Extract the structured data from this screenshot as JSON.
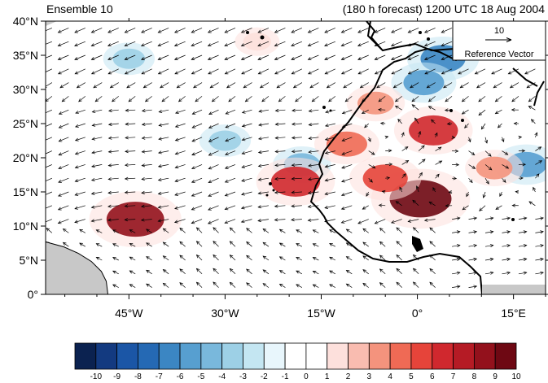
{
  "header": {
    "left_title": "Ensemble 10",
    "right_title": "(180 h forecast) 1200 UTC 18 Aug 2004"
  },
  "reference": {
    "magnitude": "10",
    "label": "Reference Vector"
  },
  "chart_data": {
    "type": "heatmap",
    "title": "",
    "xlabel": "",
    "ylabel": "",
    "xlim": [
      -58,
      20
    ],
    "ylim": [
      0,
      40
    ],
    "x_ticks": [
      -45,
      -30,
      -15,
      0,
      15
    ],
    "x_tick_labels": [
      "45°W",
      "30°W",
      "15°W",
      "0°",
      "15°E"
    ],
    "y_ticks": [
      0,
      5,
      10,
      15,
      20,
      25,
      30,
      35,
      40
    ],
    "y_tick_labels": [
      "0°",
      "5°N",
      "10°N",
      "15°N",
      "20°N",
      "25°N",
      "30°N",
      "35°N",
      "40°N"
    ],
    "colorbar": {
      "labels": [
        "-10",
        "-9",
        "-8",
        "-7",
        "-6",
        "-5",
        "-4",
        "-3",
        "-2",
        "-1",
        "0",
        "1",
        "2",
        "3",
        "4",
        "5",
        "6",
        "7",
        "8",
        "9",
        "10"
      ],
      "colors": [
        "#0b2250",
        "#133a80",
        "#1b56a6",
        "#2569b4",
        "#3b86c3",
        "#579fd0",
        "#79b8dc",
        "#9dd0e6",
        "#c4e6f2",
        "#e8f6fc",
        "#ffffff",
        "#ffffff",
        "#fde0dc",
        "#f9bcb0",
        "#f4937d",
        "#ef6a55",
        "#e6443a",
        "#d0282e",
        "#b51b25",
        "#93111c",
        "#6e0813"
      ]
    },
    "anomaly_features": [
      {
        "lon": 4.0,
        "lat": 34.5,
        "value": -6
      },
      {
        "lon": 1.0,
        "lat": 31.0,
        "value": -5
      },
      {
        "lon": -18.0,
        "lat": 19.0,
        "value": -4
      },
      {
        "lon": -45.0,
        "lat": 34.5,
        "value": -3
      },
      {
        "lon": -30.0,
        "lat": 22.5,
        "value": -3
      },
      {
        "lon": 17.0,
        "lat": 19.0,
        "value": -5
      },
      {
        "lon": -44.0,
        "lat": 11.0,
        "value": 9
      },
      {
        "lon": -19.0,
        "lat": 16.5,
        "value": 7
      },
      {
        "lon": 0.5,
        "lat": 14.0,
        "value": 10
      },
      {
        "lon": 2.5,
        "lat": 24.0,
        "value": 7
      },
      {
        "lon": -5.0,
        "lat": 17.0,
        "value": 6
      },
      {
        "lon": -6.5,
        "lat": 28.0,
        "value": 4
      },
      {
        "lon": -11.0,
        "lat": 22.0,
        "value": 5
      },
      {
        "lon": 12.0,
        "lat": 18.5,
        "value": 4
      },
      {
        "lon": -25.0,
        "lat": 37.0,
        "value": 2
      }
    ],
    "vector_field": "ensemble forecast wind anomaly vectors",
    "grid": false
  }
}
